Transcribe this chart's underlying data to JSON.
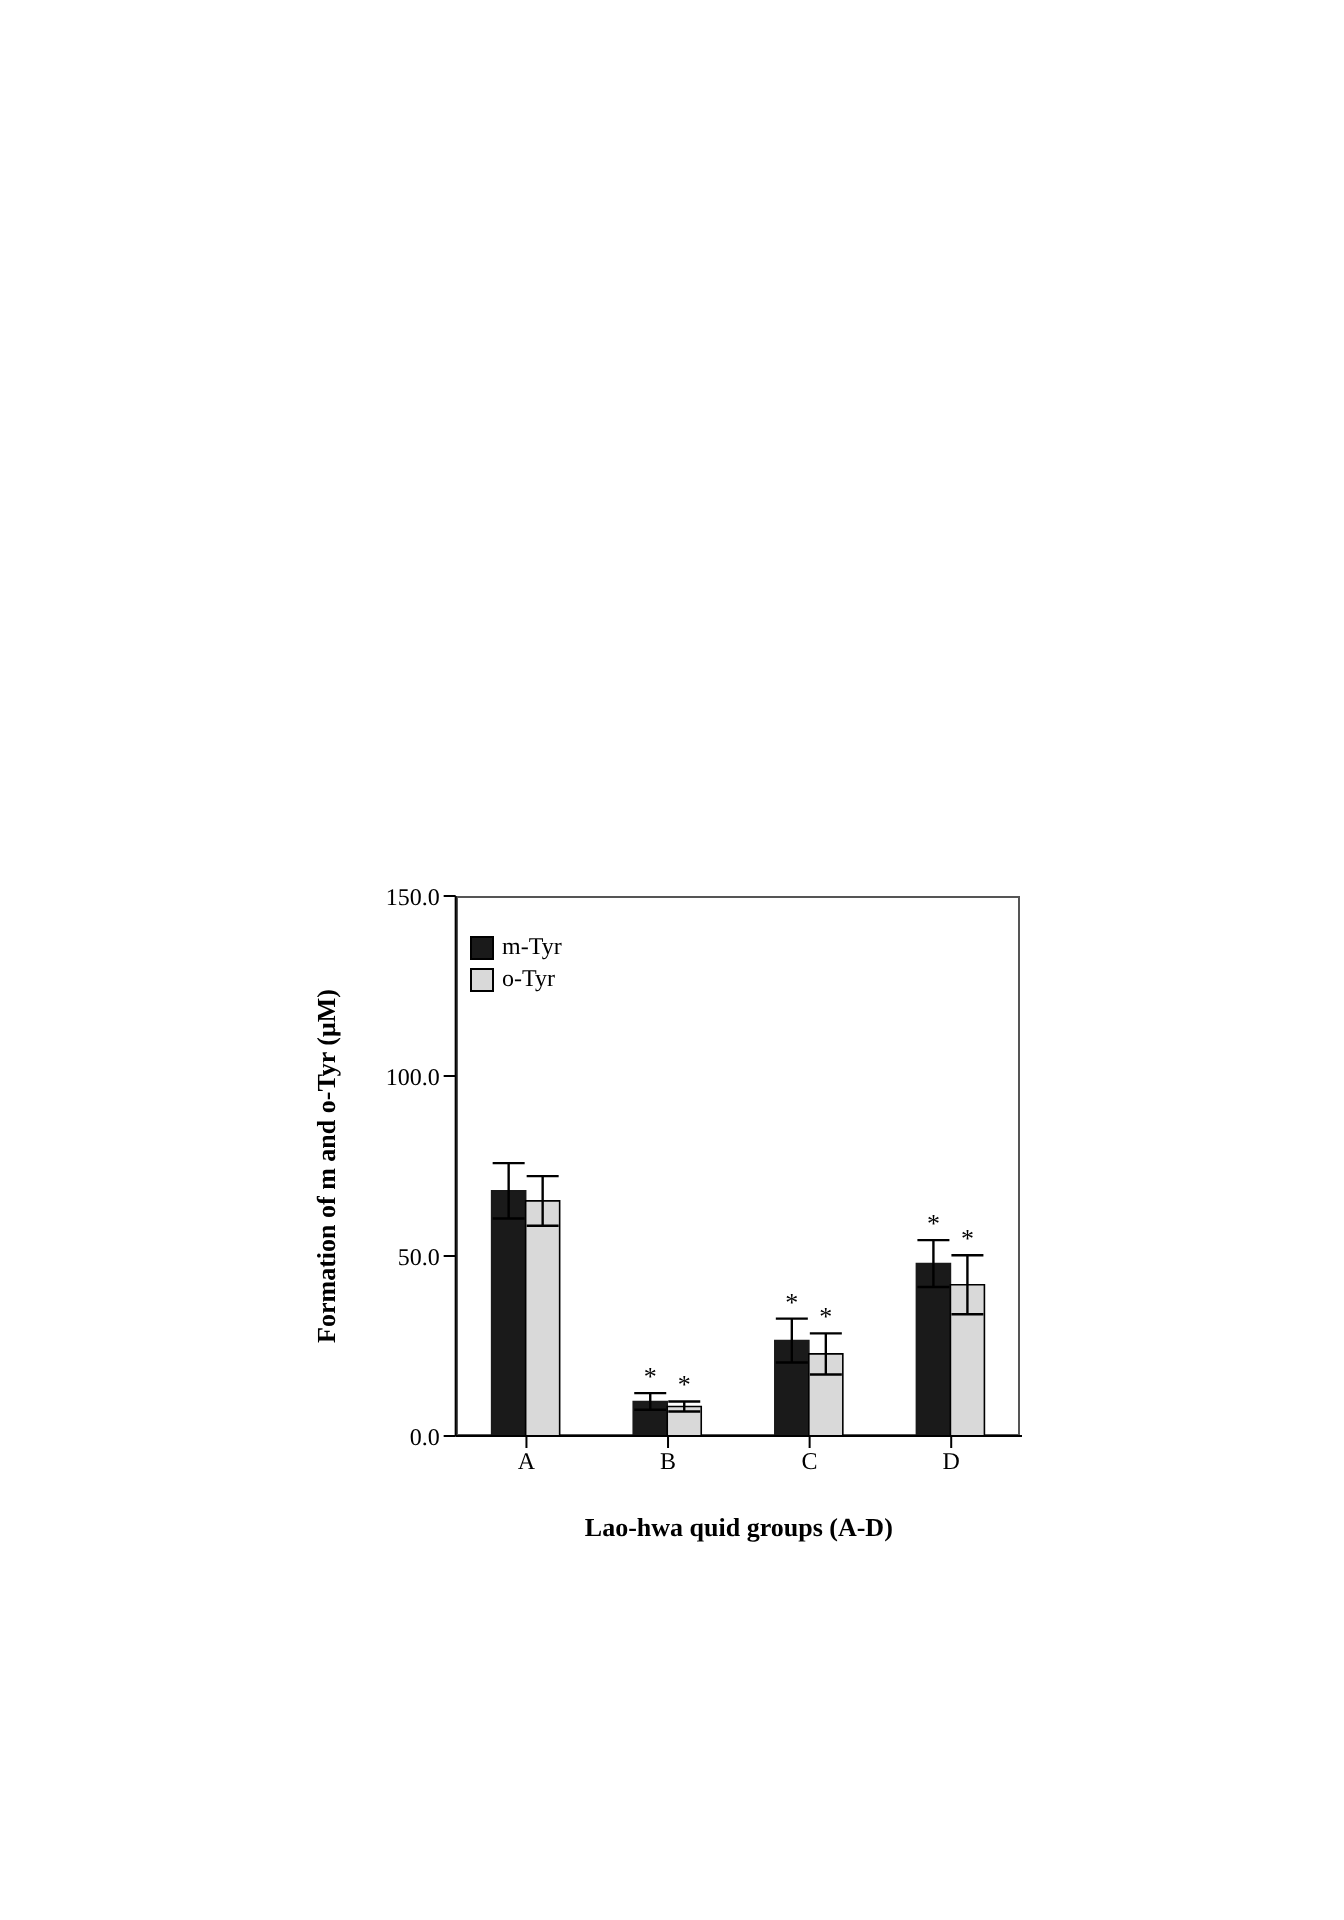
{
  "chart_data": {
    "type": "bar",
    "xlabel": "Lao-hwa quid groups (A-D)",
    "ylabel": "Formation of m and o-Tyr (μM)",
    "categories": [
      "A",
      "B",
      "C",
      "D"
    ],
    "series": [
      {
        "name": "m-Tyr",
        "color": "#1a1a1a",
        "values": [
          68.1,
          9.6,
          26.5,
          47.9
        ],
        "errors": [
          7.7,
          2.3,
          6.1,
          6.5
        ]
      },
      {
        "name": "o-Tyr",
        "color": "#d9d9d9",
        "values": [
          65.3,
          8.2,
          22.8,
          42.0
        ],
        "errors": [
          6.9,
          1.4,
          5.7,
          8.2
        ]
      }
    ],
    "ylim": [
      0,
      150
    ],
    "yticks": [
      {
        "value": 0,
        "label": "0.0"
      },
      {
        "value": 50,
        "label": "50.0"
      },
      {
        "value": 100,
        "label": "100.0"
      },
      {
        "value": 150,
        "label": "150.0"
      }
    ],
    "annotations": [
      {
        "text": "*",
        "x": "B",
        "y": 11.9
      },
      {
        "text": "*",
        "x": "B",
        "y": 9.6
      },
      {
        "text": "*",
        "x": "C",
        "y": 32.6
      },
      {
        "text": "*",
        "x": "C",
        "y": 28.5
      },
      {
        "text": "*",
        "x": "D",
        "y": 54.4
      },
      {
        "text": "*",
        "x": "D",
        "y": 50.2
      }
    ],
    "grid": false,
    "legend": "top left"
  }
}
